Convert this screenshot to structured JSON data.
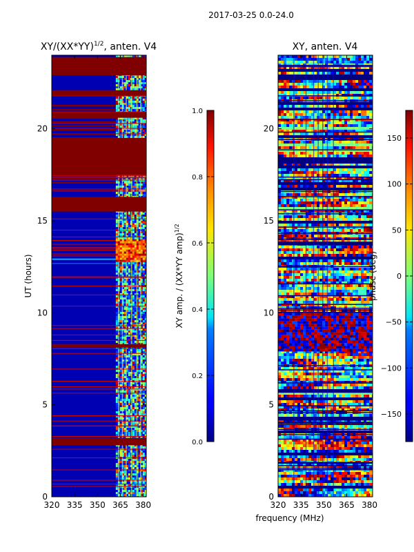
{
  "figure_title": "2017-03-25 0.0-24.0",
  "chart_data": [
    {
      "type": "heatmap",
      "title_base": "XY/(XX*YY)",
      "title_sup": "1/2",
      "title_tail": ", anten. V4",
      "xlabel": "",
      "ylabel": "UT (hours)",
      "xlim": [
        320,
        382
      ],
      "ylim": [
        0,
        24
      ],
      "xticks": [
        320,
        335,
        350,
        365,
        380
      ],
      "yticks": [
        0,
        5,
        10,
        15,
        20
      ],
      "colormap": "jet",
      "colorbar": {
        "label_base": "XY amp. / (XX*YY amp)",
        "label_sup": "1/2",
        "min": 0.0,
        "max": 1.0,
        "ticks": [
          "0.0",
          "0.2",
          "0.4",
          "0.6",
          "0.8",
          "1.0"
        ]
      },
      "description_values": {
        "background_level": 0.05,
        "flagged_level": 1.0,
        "rfi_band_mhz": [
          362,
          382
        ],
        "flagged_bands_ut": [
          [
            15.5,
            16.3
          ],
          [
            21.8,
            22.1
          ],
          [
            20.6,
            20.9
          ],
          [
            17.5,
            19.5
          ],
          [
            2.8,
            3.2
          ],
          [
            8.1,
            8.3
          ],
          [
            22.9,
            23.9
          ]
        ]
      }
    },
    {
      "type": "heatmap",
      "title_base": "XY, anten. V4",
      "xlabel": "frequency (MHz)",
      "ylabel": "",
      "xlim": [
        320,
        382
      ],
      "ylim": [
        0,
        24
      ],
      "xticks": [
        320,
        335,
        350,
        365,
        380
      ],
      "yticks": [
        0,
        5,
        10,
        15,
        20
      ],
      "colormap": "jet",
      "colorbar": {
        "label_base": "phase (deg)",
        "min": -180,
        "max": 180,
        "ticks": [
          "−150",
          "−100",
          "−50",
          "0",
          "50",
          "100",
          "150"
        ]
      }
    }
  ]
}
